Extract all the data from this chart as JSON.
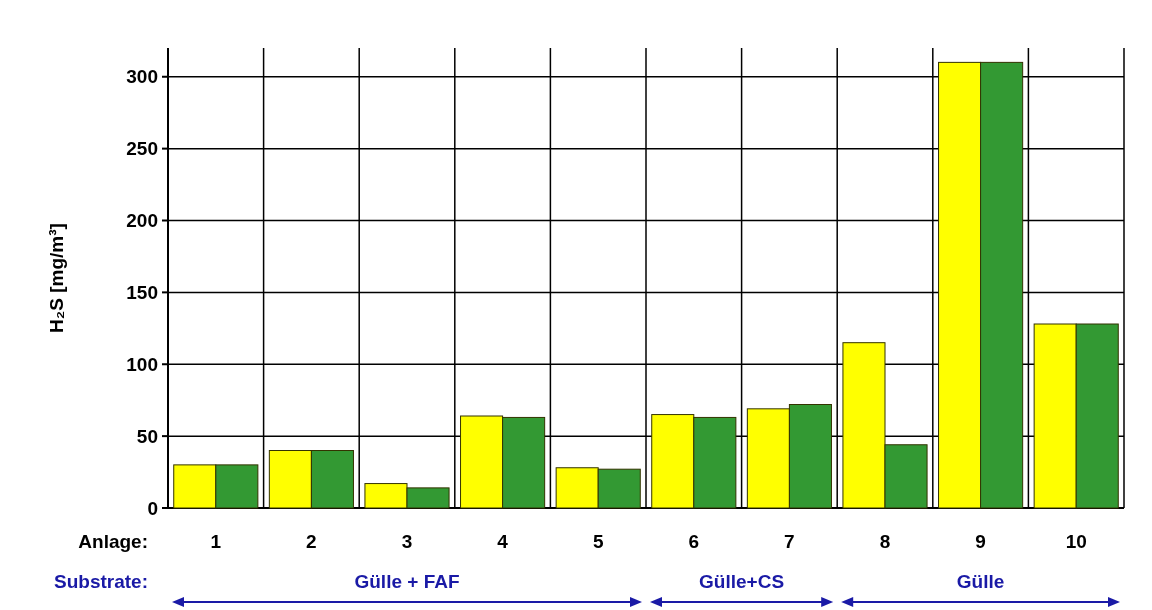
{
  "chart_data": {
    "type": "bar",
    "ylabel": "H₂S [mg/m³]",
    "xlabel": "Anlage:",
    "categories": [
      "1",
      "2",
      "3",
      "4",
      "5",
      "6",
      "7",
      "8",
      "9",
      "10"
    ],
    "series": [
      {
        "color": "#ffff00",
        "values": [
          30,
          40,
          17,
          64,
          28,
          65,
          69,
          115,
          310,
          128
        ]
      },
      {
        "color": "#339933",
        "values": [
          30,
          40,
          14,
          63,
          27,
          63,
          72,
          44,
          310,
          128
        ]
      }
    ],
    "ylim": [
      0,
      320
    ],
    "yticks": [
      0,
      50,
      100,
      150,
      200,
      250,
      300
    ],
    "grid": true,
    "annotations": [
      "Substrate:",
      "Gülle + FAF",
      "Gülle+CS",
      "Gülle"
    ]
  }
}
